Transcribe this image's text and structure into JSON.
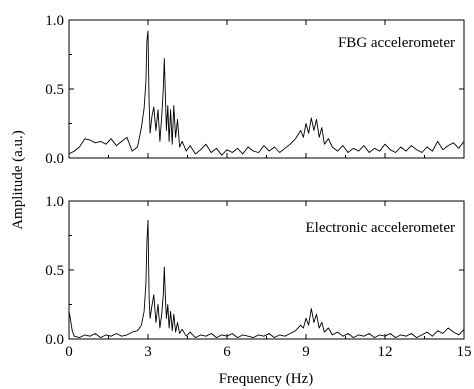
{
  "chart_data": {
    "type": "line",
    "xlabel": "Frequency (Hz)",
    "ylabel": "Amplitude (a.u.)",
    "xlim": [
      0,
      15
    ],
    "ylim": [
      0,
      1.0
    ],
    "x_ticks": [
      0,
      3,
      6,
      9,
      12,
      15
    ],
    "x_tick_labels": [
      "0",
      "3",
      "6",
      "9",
      "12",
      "15"
    ],
    "y_ticks": [
      0,
      0.5,
      1.0
    ],
    "y_tick_labels": [
      "0.0",
      "0.5",
      "1.0"
    ],
    "grid": false,
    "panels": [
      {
        "id": "fbg",
        "label": "FBG accelerometer",
        "label_position": "top-right",
        "series": [
          {
            "x": [
              0,
              0.2,
              0.4,
              0.6,
              0.8,
              1.0,
              1.2,
              1.4,
              1.6,
              1.8,
              2.0,
              2.2,
              2.4,
              2.6,
              2.75,
              2.85,
              2.92,
              2.96,
              3.0,
              3.04,
              3.08,
              3.15,
              3.22,
              3.3,
              3.38,
              3.45,
              3.52,
              3.58,
              3.62,
              3.66,
              3.7,
              3.75,
              3.8,
              3.86,
              3.92,
              3.98,
              4.05,
              4.12,
              4.2,
              4.3,
              4.45,
              4.6,
              4.8,
              5.0,
              5.2,
              5.4,
              5.6,
              5.8,
              6.0,
              6.2,
              6.4,
              6.6,
              6.8,
              7.0,
              7.2,
              7.4,
              7.6,
              7.8,
              8.0,
              8.2,
              8.4,
              8.6,
              8.8,
              8.9,
              9.0,
              9.1,
              9.2,
              9.3,
              9.4,
              9.5,
              9.6,
              9.7,
              9.85,
              10.0,
              10.2,
              10.4,
              10.6,
              10.8,
              11.0,
              11.2,
              11.4,
              11.6,
              11.8,
              12.0,
              12.2,
              12.4,
              12.6,
              12.8,
              13.0,
              13.2,
              13.4,
              13.6,
              13.8,
              14.0,
              14.2,
              14.4,
              14.6,
              14.8,
              15.0
            ],
            "y": [
              0.03,
              0.05,
              0.08,
              0.14,
              0.13,
              0.11,
              0.12,
              0.1,
              0.14,
              0.09,
              0.12,
              0.15,
              0.05,
              0.08,
              0.22,
              0.36,
              0.55,
              0.85,
              0.92,
              0.4,
              0.18,
              0.3,
              0.37,
              0.2,
              0.35,
              0.12,
              0.3,
              0.5,
              0.72,
              0.45,
              0.2,
              0.38,
              0.12,
              0.35,
              0.1,
              0.38,
              0.15,
              0.28,
              0.08,
              0.12,
              0.05,
              0.09,
              0.03,
              0.06,
              0.1,
              0.04,
              0.07,
              0.02,
              0.06,
              0.04,
              0.07,
              0.03,
              0.08,
              0.05,
              0.04,
              0.09,
              0.05,
              0.08,
              0.04,
              0.07,
              0.1,
              0.14,
              0.2,
              0.15,
              0.25,
              0.18,
              0.29,
              0.2,
              0.28,
              0.15,
              0.22,
              0.1,
              0.14,
              0.08,
              0.05,
              0.09,
              0.04,
              0.07,
              0.05,
              0.09,
              0.04,
              0.07,
              0.05,
              0.1,
              0.06,
              0.04,
              0.08,
              0.05,
              0.09,
              0.06,
              0.04,
              0.08,
              0.05,
              0.12,
              0.06,
              0.09,
              0.11,
              0.07,
              0.12
            ]
          }
        ]
      },
      {
        "id": "electronic",
        "label": "Electronic accelerometer",
        "label_position": "top-right",
        "series": [
          {
            "x": [
              0,
              0.05,
              0.12,
              0.2,
              0.4,
              0.6,
              0.8,
              1.0,
              1.2,
              1.4,
              1.6,
              1.8,
              2.0,
              2.2,
              2.4,
              2.6,
              2.75,
              2.85,
              2.92,
              2.96,
              3.0,
              3.04,
              3.08,
              3.15,
              3.22,
              3.3,
              3.38,
              3.45,
              3.52,
              3.58,
              3.62,
              3.66,
              3.7,
              3.75,
              3.8,
              3.86,
              3.92,
              3.98,
              4.05,
              4.12,
              4.2,
              4.3,
              4.45,
              4.6,
              4.8,
              5.0,
              5.2,
              5.4,
              5.6,
              5.8,
              6.0,
              6.2,
              6.4,
              6.6,
              6.8,
              7.0,
              7.2,
              7.4,
              7.6,
              7.8,
              8.0,
              8.2,
              8.4,
              8.6,
              8.8,
              8.9,
              9.0,
              9.1,
              9.2,
              9.3,
              9.4,
              9.5,
              9.6,
              9.7,
              9.85,
              10.0,
              10.2,
              10.4,
              10.6,
              10.8,
              11.0,
              11.2,
              11.4,
              11.6,
              11.8,
              12.0,
              12.2,
              12.4,
              12.6,
              12.8,
              13.0,
              13.2,
              13.4,
              13.6,
              13.8,
              14.0,
              14.2,
              14.4,
              14.6,
              14.8,
              15.0
            ],
            "y": [
              0.2,
              0.15,
              0.06,
              0.02,
              0.01,
              0.03,
              0.02,
              0.04,
              0.01,
              0.03,
              0.02,
              0.04,
              0.02,
              0.03,
              0.05,
              0.06,
              0.1,
              0.2,
              0.4,
              0.7,
              0.86,
              0.3,
              0.15,
              0.24,
              0.32,
              0.12,
              0.25,
              0.08,
              0.18,
              0.32,
              0.52,
              0.3,
              0.15,
              0.25,
              0.08,
              0.2,
              0.06,
              0.18,
              0.05,
              0.12,
              0.04,
              0.07,
              0.02,
              0.05,
              0.01,
              0.03,
              0.02,
              0.04,
              0.01,
              0.03,
              0.02,
              0.04,
              0.01,
              0.03,
              0.02,
              0.01,
              0.03,
              0.02,
              0.04,
              0.01,
              0.03,
              0.02,
              0.04,
              0.06,
              0.1,
              0.08,
              0.15,
              0.1,
              0.22,
              0.12,
              0.18,
              0.08,
              0.12,
              0.05,
              0.08,
              0.03,
              0.05,
              0.02,
              0.04,
              0.01,
              0.03,
              0.02,
              0.04,
              0.01,
              0.03,
              0.02,
              0.04,
              0.01,
              0.03,
              0.02,
              0.04,
              0.01,
              0.03,
              0.05,
              0.02,
              0.06,
              0.04,
              0.08,
              0.05,
              0.03,
              0.07
            ]
          }
        ]
      }
    ]
  }
}
